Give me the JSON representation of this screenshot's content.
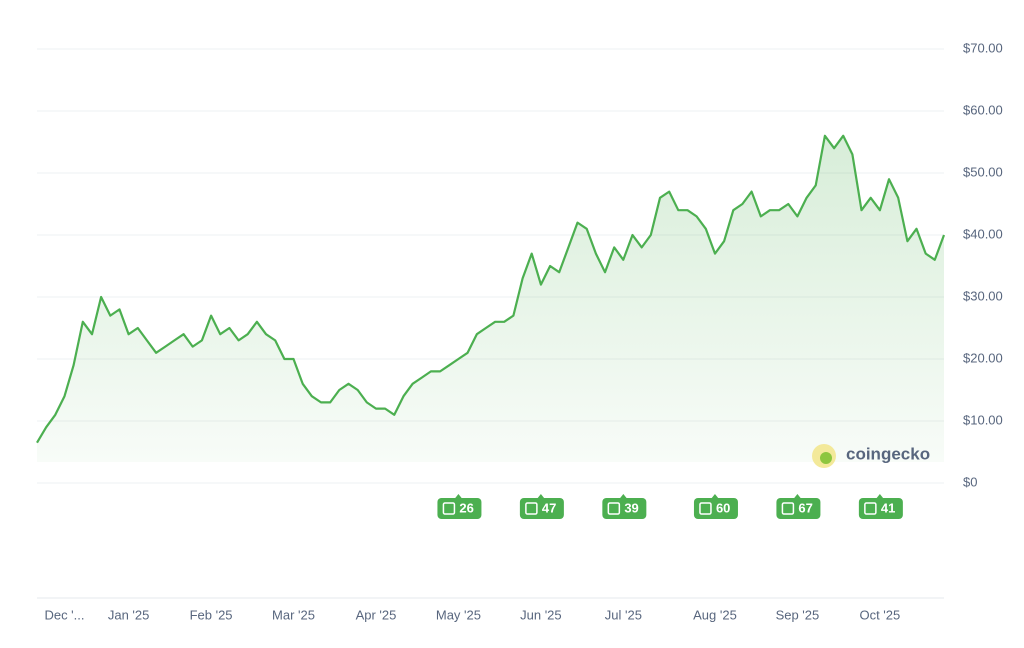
{
  "chart_data": {
    "type": "line",
    "color": "#4caf50",
    "categories": [
      null,
      null,
      null,
      "Dec '...",
      null,
      null,
      null,
      null,
      null,
      null,
      "Jan '25",
      null,
      null,
      null,
      null,
      null,
      null,
      null,
      null,
      "Feb '25",
      null,
      null,
      null,
      null,
      null,
      null,
      null,
      null,
      "Mar '25",
      null,
      null,
      null,
      null,
      null,
      null,
      null,
      null,
      "Apr '25",
      null,
      null,
      null,
      null,
      null,
      null,
      null,
      null,
      "May '25",
      null,
      null,
      null,
      null,
      null,
      null,
      null,
      null,
      "Jun '25",
      null,
      null,
      null,
      null,
      null,
      null,
      null,
      null,
      "Jul '25",
      null,
      null,
      null,
      null,
      null,
      null,
      null,
      null,
      null,
      "Aug '25",
      null,
      null,
      null,
      null,
      null,
      null,
      null,
      null,
      "Sep '25",
      null,
      null,
      null,
      null,
      null,
      null,
      null,
      null,
      "Oct '25",
      null,
      null,
      null,
      null,
      null,
      null,
      null
    ],
    "values": [
      6.5,
      9,
      11,
      14,
      19,
      26,
      24,
      30,
      27,
      28,
      24,
      25,
      23,
      21,
      22,
      23,
      24,
      22,
      23,
      27,
      24,
      25,
      23,
      24,
      26,
      24,
      23,
      20,
      20,
      16,
      14,
      13,
      13,
      15,
      16,
      15,
      13,
      12,
      12,
      11,
      14,
      16,
      17,
      18,
      18,
      19,
      20,
      21,
      24,
      25,
      26,
      26,
      27,
      33,
      37,
      32,
      35,
      34,
      38,
      42,
      41,
      37,
      34,
      38,
      36,
      40,
      38,
      40,
      46,
      47,
      44,
      44,
      43,
      41,
      37,
      39,
      44,
      45,
      47,
      43,
      44,
      44,
      45,
      43,
      46,
      48,
      56,
      54,
      56,
      53,
      44,
      46,
      44,
      49,
      46,
      39,
      41,
      37,
      36,
      40
    ],
    "ylim": [
      0,
      70
    ],
    "yticks": [
      {
        "value": 0,
        "label": "$0"
      },
      {
        "value": 10,
        "label": "$10.00"
      },
      {
        "value": 20,
        "label": "$20.00"
      },
      {
        "value": 30,
        "label": "$30.00"
      },
      {
        "value": 40,
        "label": "$40.00"
      },
      {
        "value": 50,
        "label": "$50.00"
      },
      {
        "value": 60,
        "label": "$60.00"
      },
      {
        "value": 70,
        "label": "$70.00"
      }
    ],
    "grid": true,
    "news": [
      {
        "month": "May '25",
        "count": 26
      },
      {
        "month": "Jun '25",
        "count": 47
      },
      {
        "month": "Jul '25",
        "count": 39
      },
      {
        "month": "Aug '25",
        "count": 60
      },
      {
        "month": "Sep '25",
        "count": 67
      },
      {
        "month": "Oct '25",
        "count": 41
      }
    ],
    "watermark": "coingecko"
  }
}
